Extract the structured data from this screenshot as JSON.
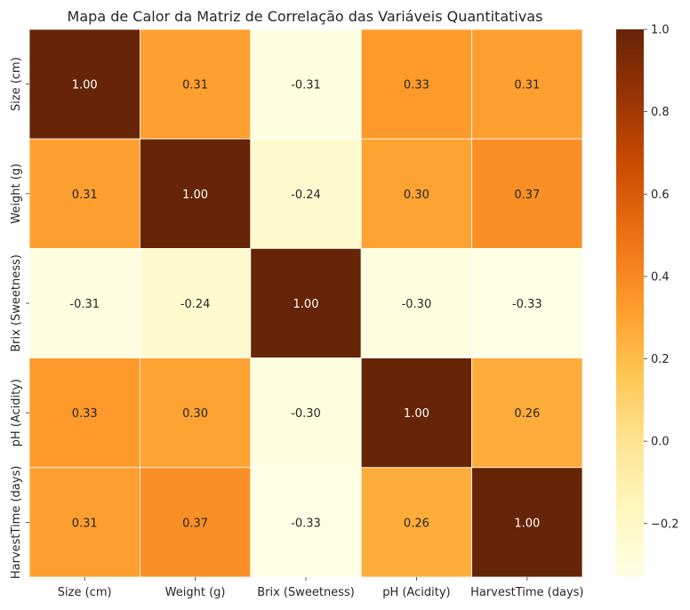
{
  "chart_data": {
    "type": "heatmap",
    "title": "Mapa de Calor da Matriz de Correlação das Variáveis Quantitativas",
    "x_labels": [
      "Size (cm)",
      "Weight (g)",
      "Brix (Sweetness)",
      "pH (Acidity)",
      "HarvestTime (days)"
    ],
    "y_labels": [
      "Size (cm)",
      "Weight (g)",
      "Brix (Sweetness)",
      "pH (Acidity)",
      "HarvestTime (days)"
    ],
    "values": [
      [
        1.0,
        0.31,
        -0.31,
        0.33,
        0.31
      ],
      [
        0.31,
        1.0,
        -0.24,
        0.3,
        0.37
      ],
      [
        -0.31,
        -0.24,
        1.0,
        -0.3,
        -0.33
      ],
      [
        0.33,
        0.3,
        -0.3,
        1.0,
        0.26
      ],
      [
        0.31,
        0.37,
        -0.33,
        0.26,
        1.0
      ]
    ],
    "value_format": "0.00",
    "colormap": "YlOrBr",
    "colors": [
      "#ffffe5",
      "#fff7bc",
      "#fee391",
      "#fec44f",
      "#fe9929",
      "#ec7014",
      "#cc4c02",
      "#993404",
      "#662506"
    ],
    "vmin": -0.33,
    "vmax": 1.0,
    "colorbar": {
      "ticks": [
        -0.2,
        0.0,
        0.2,
        0.4,
        0.6,
        0.8,
        1.0
      ],
      "tick_labels": [
        "−0.2",
        "0.0",
        "0.2",
        "0.4",
        "0.6",
        "0.8",
        "1.0"
      ]
    },
    "grid_lines": true,
    "annotation_dark_color": "#262626",
    "annotation_light_color": "#ffffff"
  }
}
